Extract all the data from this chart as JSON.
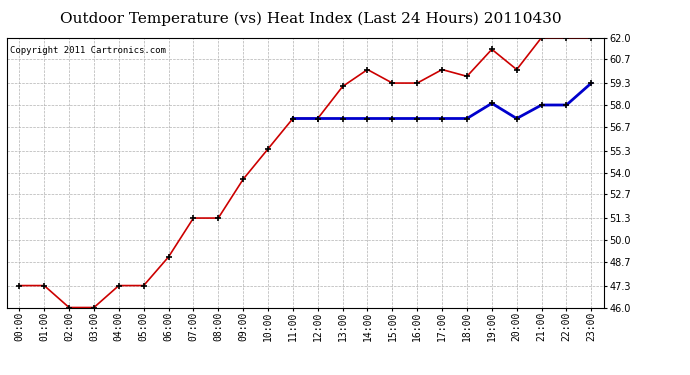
{
  "title": "Outdoor Temperature (vs) Heat Index (Last 24 Hours) 20110430",
  "copyright": "Copyright 2011 Cartronics.com",
  "hours": [
    "00:00",
    "01:00",
    "02:00",
    "03:00",
    "04:00",
    "05:00",
    "06:00",
    "07:00",
    "08:00",
    "09:00",
    "10:00",
    "11:00",
    "12:00",
    "13:00",
    "14:00",
    "15:00",
    "16:00",
    "17:00",
    "18:00",
    "19:00",
    "20:00",
    "21:00",
    "22:00",
    "23:00"
  ],
  "temp": [
    47.3,
    47.3,
    46.0,
    46.0,
    47.3,
    47.3,
    49.0,
    51.3,
    51.3,
    53.6,
    55.4,
    57.2,
    57.2,
    59.1,
    60.1,
    59.3,
    59.3,
    60.1,
    59.7,
    61.3,
    60.1,
    62.0,
    62.0,
    62.0
  ],
  "heat_index": [
    null,
    null,
    null,
    null,
    null,
    null,
    null,
    null,
    null,
    null,
    null,
    57.2,
    57.2,
    57.2,
    57.2,
    57.2,
    57.2,
    57.2,
    57.2,
    58.1,
    57.2,
    58.0,
    58.0,
    59.3
  ],
  "temp_color": "#cc0000",
  "heat_color": "#0000cc",
  "bg_color": "#ffffff",
  "grid_color": "#aaaaaa",
  "ylim": [
    46.0,
    62.0
  ],
  "yticks": [
    46.0,
    47.3,
    48.7,
    50.0,
    51.3,
    52.7,
    54.0,
    55.3,
    56.7,
    58.0,
    59.3,
    60.7,
    62.0
  ],
  "title_fontsize": 11,
  "copyright_fontsize": 6.5,
  "tick_fontsize": 7
}
